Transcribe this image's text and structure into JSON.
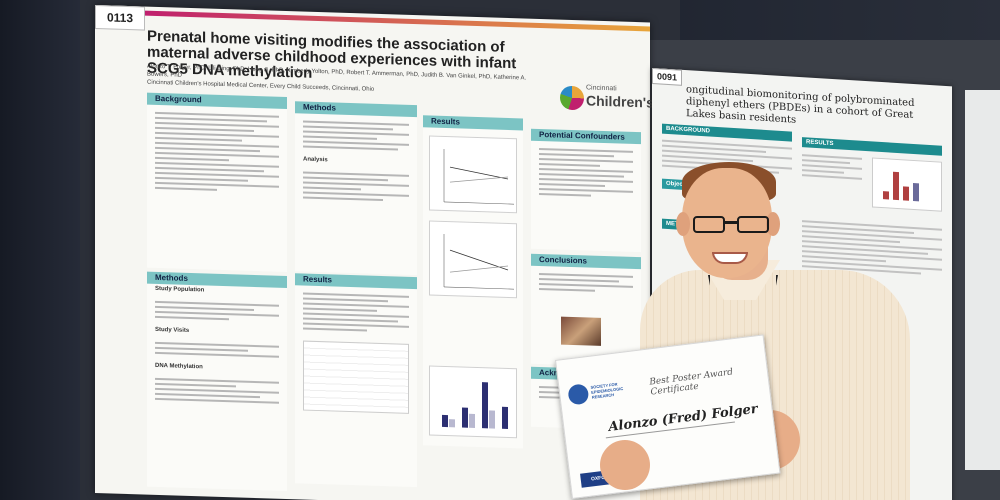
{
  "poster_main": {
    "number": "0113",
    "title": "Prenatal home visiting modifies the association of maternal adverse childhood experiences with infant SCG5 DNA methylation",
    "authors": "Alonzo T. Folger, PhD, Lili Ding, PhD, Hong Ji, PhD, Kimberly Yolton, PhD, Robert T. Ammerman, PhD, Judith B. Van Ginkel, PhD, Katherine A. Bowers, PhD",
    "affiliation": "Cincinnati Children's Hospital Medical Center, Every Child Succeeds, Cincinnati, Ohio",
    "logo_small": "Cincinnati",
    "logo_big": "Children's",
    "sections": {
      "background": "Background",
      "methods_top": "Methods",
      "methods_bottom": "Methods",
      "results_mid": "Results",
      "results_chart": "Results",
      "conclusions": "Conclusions",
      "acknowledgments": "Acknowledgments",
      "potential_confounders": "Potential Confounders"
    },
    "sub_labels": {
      "study_population": "Study Population",
      "study_visits": "Study Visits",
      "dna_methylation": "DNA Methylation",
      "analysis": "Analysis"
    }
  },
  "poster_right": {
    "number": "0091",
    "title": "ongitudinal biomonitoring of polybrominated diphenyl ethers (PBDEs) in a cohort of Great Lakes basin residents",
    "sections": {
      "background": "BACKGROUND",
      "results": "RESULTS",
      "objectives": "Objectives",
      "methods": "METH"
    }
  },
  "certificate": {
    "title": "Best Poster Award Certificate",
    "name": "Alonzo (Fred) Folger",
    "publisher": "OXFORD"
  }
}
